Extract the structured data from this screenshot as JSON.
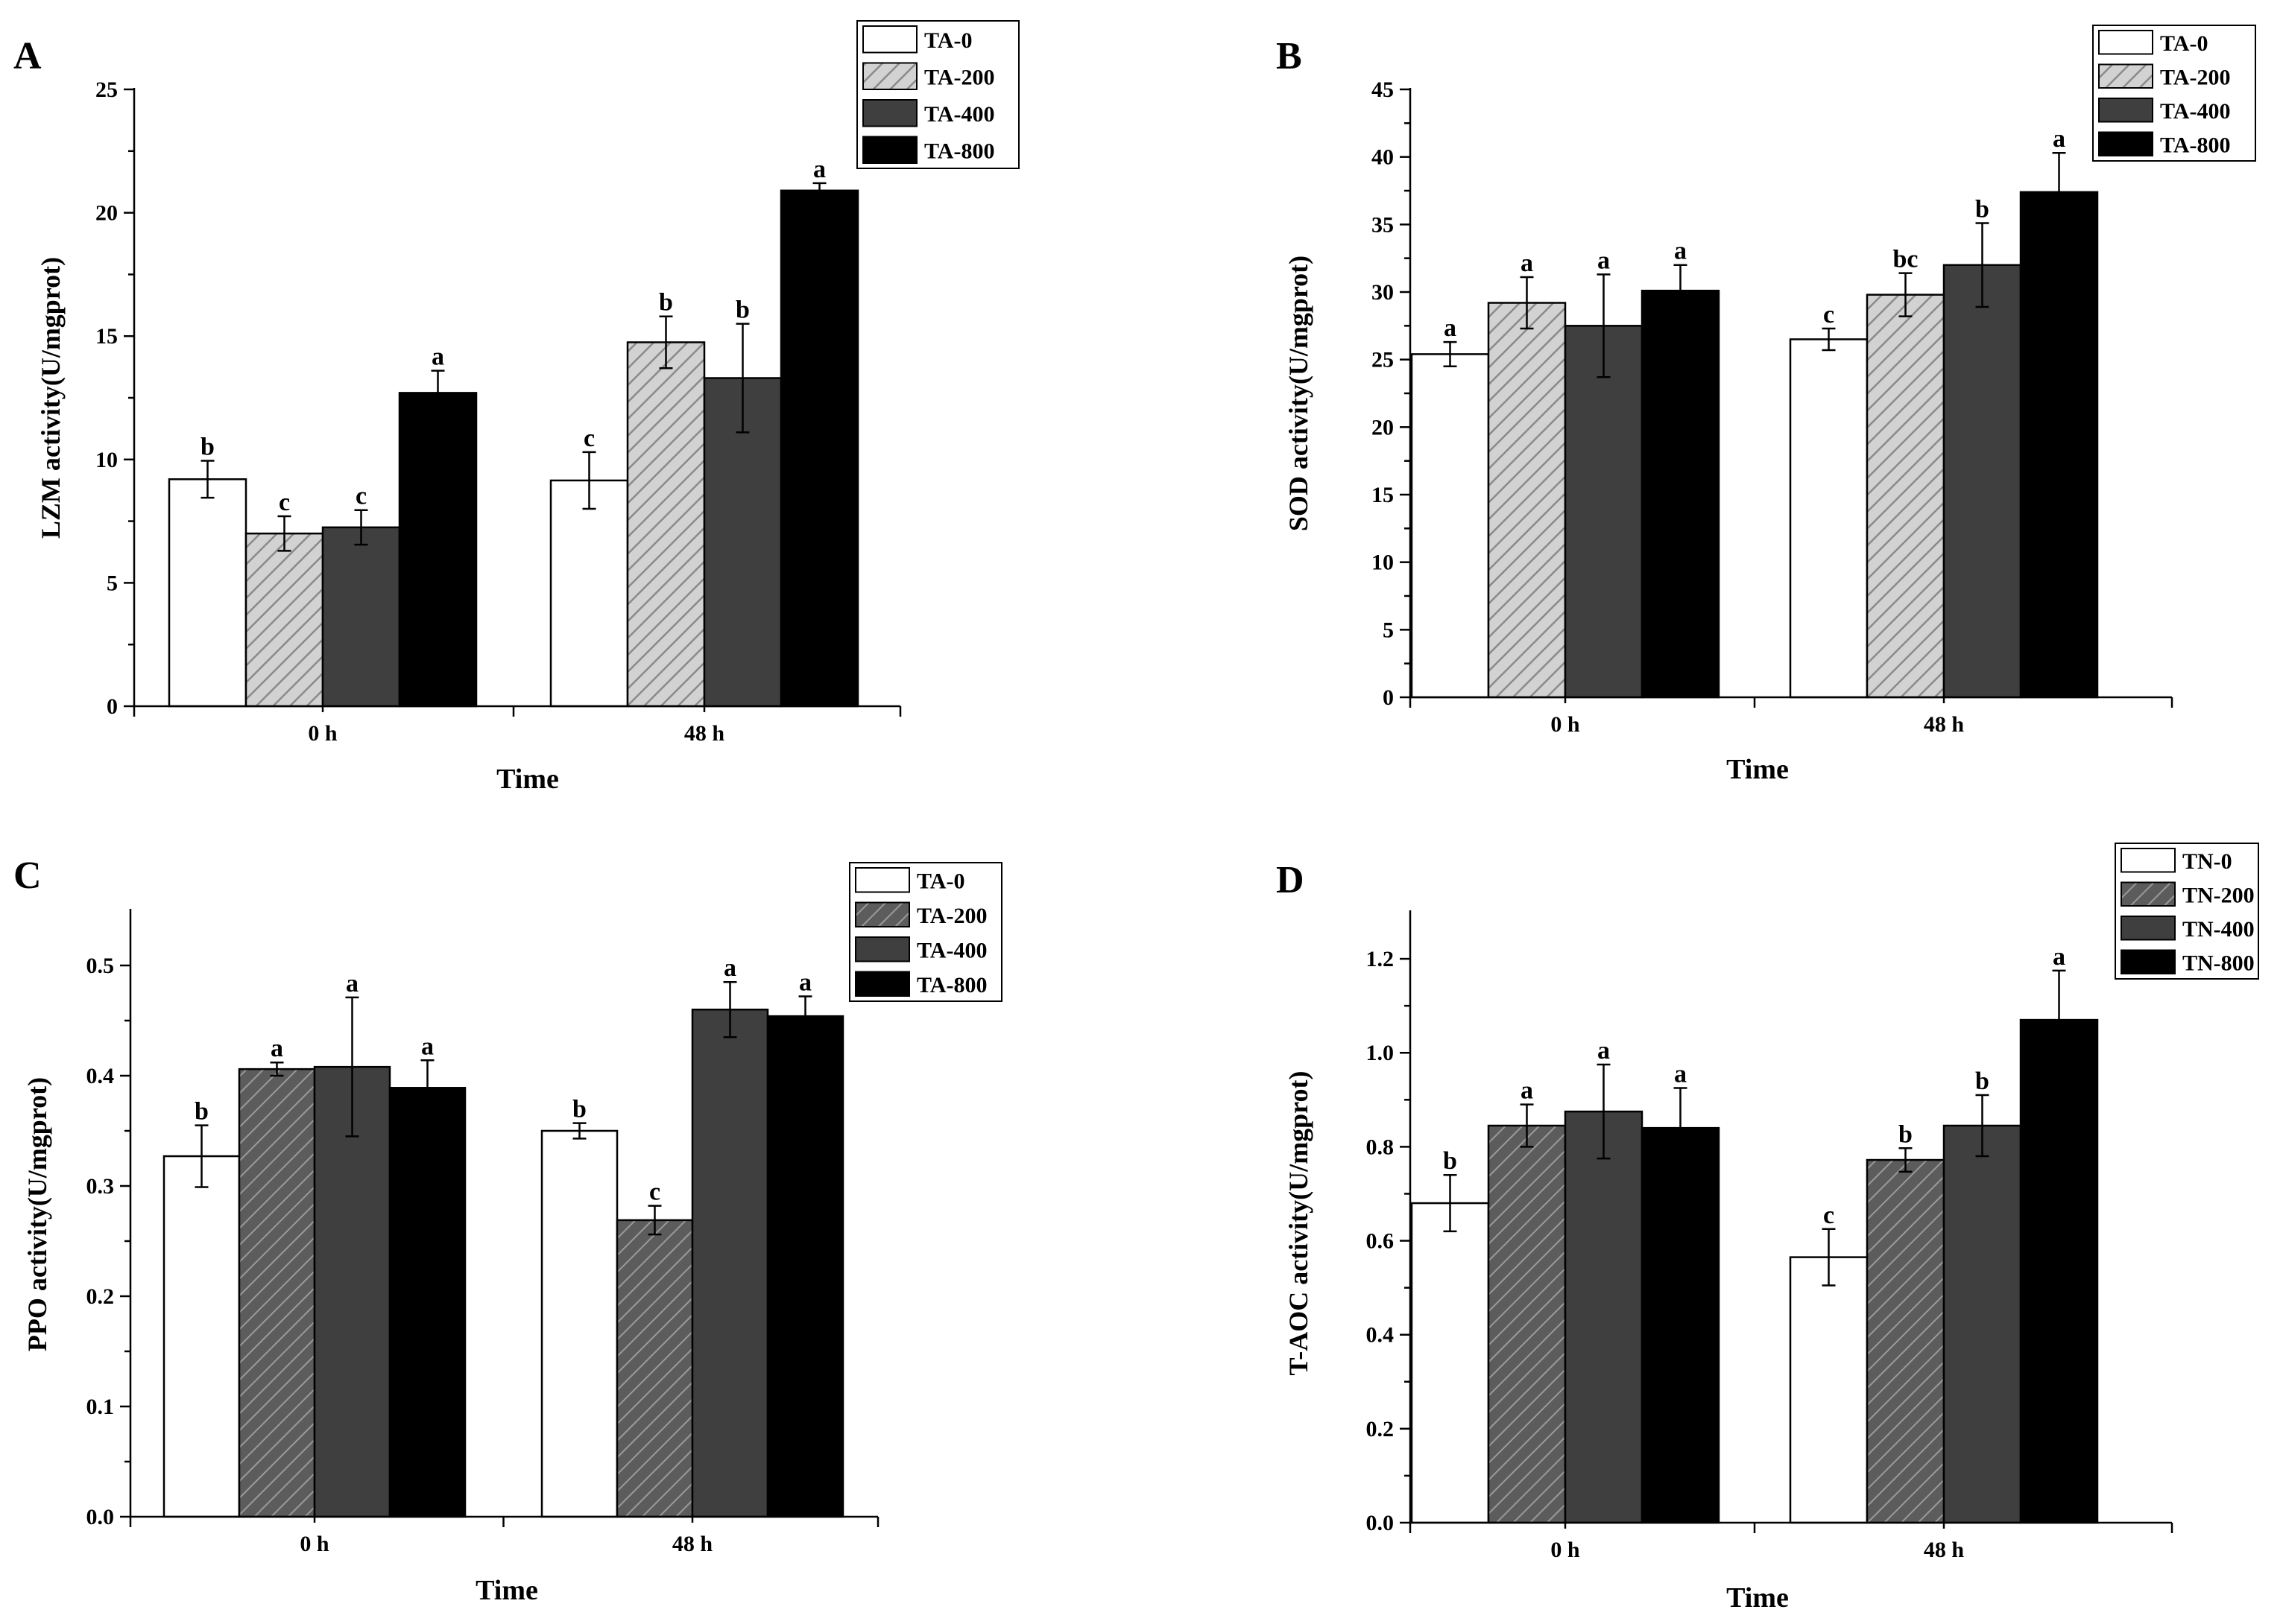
{
  "figure": {
    "background": "#ffffff",
    "axis_color": "#000000"
  },
  "chart_data": [
    {
      "panel_label": "A",
      "type": "bar",
      "title": "",
      "xlabel": "Time",
      "ylabel": "LZM activity(U/mgprot)",
      "categories": [
        "0 h",
        "48 h"
      ],
      "ylim": [
        0,
        25
      ],
      "yticks": [
        "0",
        "5",
        "10",
        "15",
        "20",
        "25"
      ],
      "legend_position": "top-right",
      "series": [
        {
          "name": "TA-0",
          "style": "white",
          "values": [
            9.2,
            9.15
          ],
          "errors": [
            0.75,
            1.15
          ],
          "letters": [
            "b",
            "c"
          ]
        },
        {
          "name": "TA-200",
          "style": "hatch-light",
          "values": [
            7.0,
            14.75
          ],
          "errors": [
            0.7,
            1.05
          ],
          "letters": [
            "c",
            "b"
          ]
        },
        {
          "name": "TA-400",
          "style": "dark",
          "values": [
            7.25,
            13.3
          ],
          "errors": [
            0.7,
            2.2
          ],
          "letters": [
            "c",
            "b"
          ]
        },
        {
          "name": "TA-800",
          "style": "black",
          "values": [
            12.7,
            20.9
          ],
          "errors": [
            0.9,
            0.3
          ],
          "letters": [
            "a",
            "a"
          ]
        }
      ]
    },
    {
      "panel_label": "B",
      "type": "bar",
      "title": "",
      "xlabel": "Time",
      "ylabel": "SOD activity(U/mgprot)",
      "categories": [
        "0 h",
        "48 h"
      ],
      "ylim": [
        0,
        45
      ],
      "yticks": [
        "0",
        "5",
        "10",
        "15",
        "20",
        "25",
        "30",
        "35",
        "40",
        "45"
      ],
      "legend_position": "top-right",
      "series": [
        {
          "name": "TA-0",
          "style": "white",
          "values": [
            25.4,
            26.5
          ],
          "errors": [
            0.9,
            0.8
          ],
          "letters": [
            "a",
            "c"
          ]
        },
        {
          "name": "TA-200",
          "style": "hatch-light",
          "values": [
            29.2,
            29.8
          ],
          "errors": [
            1.9,
            1.6
          ],
          "letters": [
            "a",
            "bc"
          ]
        },
        {
          "name": "TA-400",
          "style": "dark",
          "values": [
            27.5,
            32.0
          ],
          "errors": [
            3.8,
            3.1
          ],
          "letters": [
            "a",
            "b"
          ]
        },
        {
          "name": "TA-800",
          "style": "black",
          "values": [
            30.1,
            37.4
          ],
          "errors": [
            1.9,
            2.9
          ],
          "letters": [
            "a",
            "a"
          ]
        }
      ]
    },
    {
      "panel_label": "C",
      "type": "bar",
      "title": "",
      "xlabel": "Time",
      "ylabel": "PPO activity(U/mgprot)",
      "categories": [
        "0 h",
        "48 h"
      ],
      "ylim": [
        0,
        0.55
      ],
      "yticks": [
        "0.0",
        "0.1",
        "0.2",
        "0.3",
        "0.4",
        "0.5"
      ],
      "legend_position": "top-right",
      "series": [
        {
          "name": "TA-0",
          "style": "white",
          "values": [
            0.327,
            0.35
          ],
          "errors": [
            0.028,
            0.007
          ],
          "letters": [
            "b",
            "b"
          ]
        },
        {
          "name": "TA-200",
          "style": "hatch-dark",
          "values": [
            0.406,
            0.269
          ],
          "errors": [
            0.006,
            0.013
          ],
          "letters": [
            "a",
            "c"
          ]
        },
        {
          "name": "TA-400",
          "style": "dark",
          "values": [
            0.408,
            0.46
          ],
          "errors": [
            0.063,
            0.025
          ],
          "letters": [
            "a",
            "a"
          ]
        },
        {
          "name": "TA-800",
          "style": "black",
          "values": [
            0.389,
            0.454
          ],
          "errors": [
            0.025,
            0.018
          ],
          "letters": [
            "a",
            "a"
          ]
        }
      ]
    },
    {
      "panel_label": "D",
      "type": "bar",
      "title": "",
      "xlabel": "Time",
      "ylabel": "T-AOC activity(U/mgprot)",
      "categories": [
        "0 h",
        "48 h"
      ],
      "ylim": [
        0,
        1.3
      ],
      "yticks": [
        "0.0",
        "0.2",
        "0.4",
        "0.6",
        "0.8",
        "1.0",
        "1.2"
      ],
      "legend_position": "top-right",
      "series": [
        {
          "name": "TN-0",
          "style": "white",
          "values": [
            0.68,
            0.565
          ],
          "errors": [
            0.06,
            0.06
          ],
          "letters": [
            "b",
            "c"
          ]
        },
        {
          "name": "TN-200",
          "style": "hatch-dark",
          "values": [
            0.845,
            0.772
          ],
          "errors": [
            0.045,
            0.025
          ],
          "letters": [
            "a",
            "b"
          ]
        },
        {
          "name": "TN-400",
          "style": "dark",
          "values": [
            0.875,
            0.845
          ],
          "errors": [
            0.1,
            0.065
          ],
          "letters": [
            "a",
            "b"
          ]
        },
        {
          "name": "TN-800",
          "style": "black",
          "values": [
            0.84,
            1.07
          ],
          "errors": [
            0.085,
            0.105
          ],
          "letters": [
            "a",
            "a"
          ]
        }
      ]
    }
  ]
}
